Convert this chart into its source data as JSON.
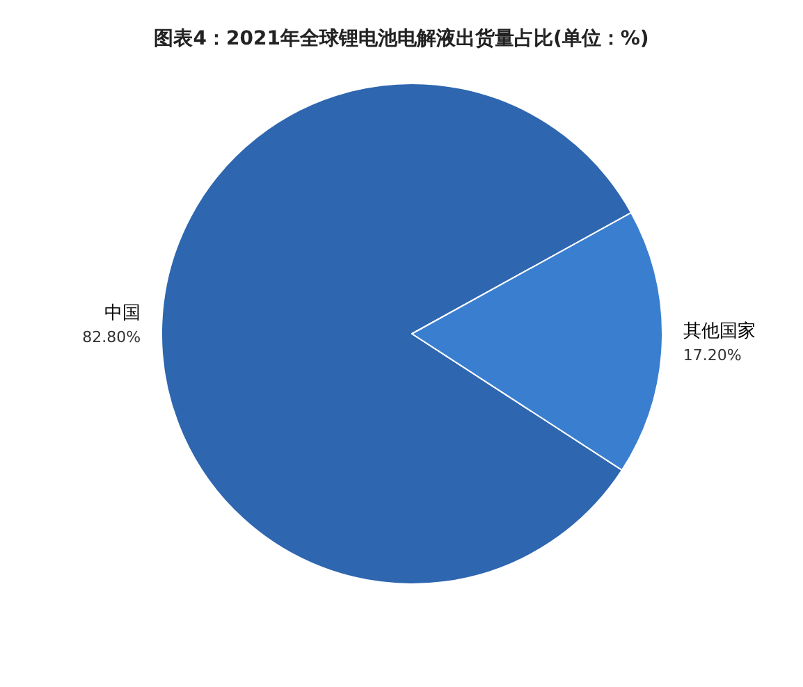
{
  "chart_data": {
    "type": "pie",
    "title": "图表4：2021年全球锂电池电解液出货量占比(单位：%)",
    "categories": [
      "中国",
      "其他国家"
    ],
    "values": [
      82.8,
      17.2
    ],
    "value_labels": [
      "82.80%",
      "17.20%"
    ],
    "colors": [
      "#2e66b0",
      "#3a7ed0"
    ],
    "legend": false
  }
}
